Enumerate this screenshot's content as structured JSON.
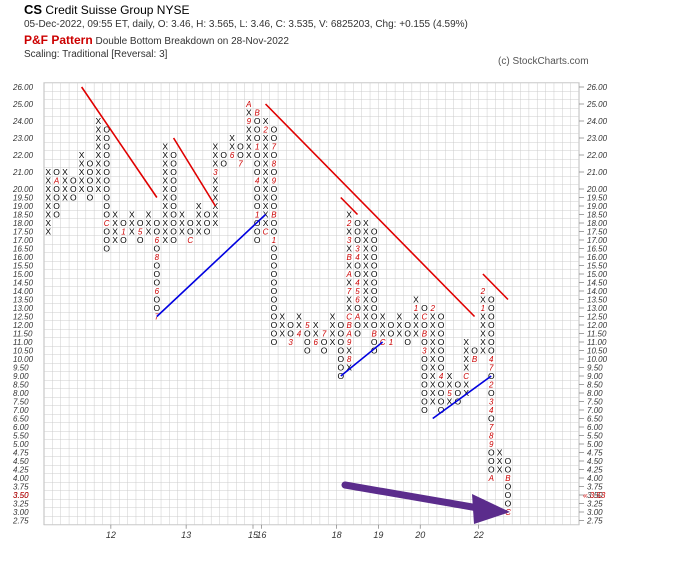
{
  "header": {
    "symbol": "CS",
    "name": "Credit Suisse Group  NYSE",
    "quote": "05-Dec-2022, 09:55 ET, daily, O: 3.46, H: 3.565, L: 3.46, C: 3.535, V: 6825203, Chg: +0.155 (4.59%)",
    "pattern_label": "P&F Pattern",
    "pattern_text": "Double Bottom Breakdown on 28-Nov-2022",
    "scaling": "Scaling: Traditional [Reversal: 3]",
    "credit": "(c) StockCharts.com"
  },
  "chart_data": {
    "type": "point-and-figure",
    "box_prices": [
      26,
      25.5,
      25,
      24.5,
      24,
      23.5,
      23,
      22.5,
      22,
      21.5,
      21,
      20.5,
      20,
      19.5,
      19,
      18.5,
      18,
      17.5,
      17,
      16.5,
      16,
      15.5,
      15,
      14.5,
      14,
      13.5,
      13,
      12.5,
      12,
      11.5,
      11,
      10.5,
      10,
      9.5,
      9,
      8.5,
      8,
      7.5,
      7,
      6.5,
      6,
      5.5,
      5,
      4.75,
      4.5,
      4.25,
      4,
      3.75,
      3.5,
      3.25,
      3,
      2.75
    ],
    "y_labels": [
      "26.00",
      "25.00",
      "24.00",
      "23.00",
      "22.00",
      "21.00",
      "20.00",
      "19.50",
      "19.00",
      "18.50",
      "18.00",
      "17.50",
      "17.00",
      "16.50",
      "16.00",
      "15.50",
      "15.00",
      "14.50",
      "14.00",
      "13.50",
      "13.00",
      "12.50",
      "12.00",
      "11.50",
      "11.00",
      "10.50",
      "10.00",
      "9.50",
      "9.00",
      "8.50",
      "8.00",
      "7.50",
      "7.00",
      "6.50",
      "6.00",
      "5.50",
      "5.00",
      "4.75",
      "4.50",
      "4.25",
      "4.00",
      "3.75",
      "3.50",
      "3.25",
      "3.00",
      "2.75"
    ],
    "last_price_label": "3.53",
    "year_labels": [
      {
        "label": "12",
        "col": 8
      },
      {
        "label": "13",
        "col": 17
      },
      {
        "label": "15",
        "col": 25
      },
      {
        "label": "16",
        "col": 26
      },
      {
        "label": "18",
        "col": 35
      },
      {
        "label": "19",
        "col": 40
      },
      {
        "label": "20",
        "col": 45
      },
      {
        "label": "22",
        "col": 52
      }
    ],
    "columns": [
      {
        "col": 0,
        "type": "X",
        "from": 17.5,
        "to": 21
      },
      {
        "col": 1,
        "type": "O",
        "from": 21,
        "to": 18.5
      },
      {
        "col": 2,
        "type": "X",
        "from": 19.5,
        "to": 21
      },
      {
        "col": 3,
        "type": "O",
        "from": 20.5,
        "to": 19.5
      },
      {
        "col": 4,
        "type": "X",
        "from": 20,
        "to": 22
      },
      {
        "col": 5,
        "type": "O",
        "from": 21.5,
        "to": 19.5
      },
      {
        "col": 6,
        "type": "X",
        "from": 20,
        "to": 24
      },
      {
        "col": 7,
        "type": "O",
        "from": 23.5,
        "to": 16.5
      },
      {
        "col": 8,
        "type": "X",
        "from": 17,
        "to": 18.5
      },
      {
        "col": 9,
        "type": "O",
        "from": 18,
        "to": 17
      },
      {
        "col": 10,
        "type": "X",
        "from": 17.5,
        "to": 18.5
      },
      {
        "col": 11,
        "type": "O",
        "from": 18,
        "to": 17
      },
      {
        "col": 12,
        "type": "X",
        "from": 17.5,
        "to": 18.5
      },
      {
        "col": 13,
        "type": "O",
        "from": 18,
        "to": 12.5
      },
      {
        "col": 14,
        "type": "X",
        "from": 17,
        "to": 22.5
      },
      {
        "col": 15,
        "type": "O",
        "from": 22,
        "to": 17
      },
      {
        "col": 16,
        "type": "X",
        "from": 17.5,
        "to": 18.5
      },
      {
        "col": 17,
        "type": "O",
        "from": 18,
        "to": 17
      },
      {
        "col": 18,
        "type": "X",
        "from": 17.5,
        "to": 19
      },
      {
        "col": 19,
        "type": "O",
        "from": 18.5,
        "to": 17.5
      },
      {
        "col": 20,
        "type": "X",
        "from": 18,
        "to": 22.5
      },
      {
        "col": 21,
        "type": "O",
        "from": 22,
        "to": 21.5
      },
      {
        "col": 22,
        "type": "X",
        "from": 22,
        "to": 23
      },
      {
        "col": 23,
        "type": "O",
        "from": 22.5,
        "to": 21.5
      },
      {
        "col": 24,
        "type": "X",
        "from": 22,
        "to": 25
      },
      {
        "col": 25,
        "type": "O",
        "from": 24.5,
        "to": 17
      },
      {
        "col": 26,
        "type": "X",
        "from": 17.5,
        "to": 24
      },
      {
        "col": 27,
        "type": "O",
        "from": 23.5,
        "to": 11
      },
      {
        "col": 28,
        "type": "X",
        "from": 11.5,
        "to": 12.5
      },
      {
        "col": 29,
        "type": "O",
        "from": 12,
        "to": 11
      },
      {
        "col": 30,
        "type": "X",
        "from": 11.5,
        "to": 12.5
      },
      {
        "col": 31,
        "type": "O",
        "from": 12,
        "to": 10.5
      },
      {
        "col": 32,
        "type": "X",
        "from": 11,
        "to": 12
      },
      {
        "col": 33,
        "type": "O",
        "from": 11.5,
        "to": 10.5
      },
      {
        "col": 34,
        "type": "X",
        "from": 11,
        "to": 12.5
      },
      {
        "col": 35,
        "type": "O",
        "from": 12,
        "to": 9
      },
      {
        "col": 36,
        "type": "X",
        "from": 9.5,
        "to": 18.5
      },
      {
        "col": 37,
        "type": "O",
        "from": 18,
        "to": 11.5
      },
      {
        "col": 38,
        "type": "X",
        "from": 12,
        "to": 18
      },
      {
        "col": 39,
        "type": "O",
        "from": 17.5,
        "to": 10.5
      },
      {
        "col": 40,
        "type": "X",
        "from": 11,
        "to": 12.5
      },
      {
        "col": 41,
        "type": "O",
        "from": 12,
        "to": 11
      },
      {
        "col": 42,
        "type": "X",
        "from": 11.5,
        "to": 12.5
      },
      {
        "col": 43,
        "type": "O",
        "from": 12,
        "to": 11
      },
      {
        "col": 44,
        "type": "X",
        "from": 11.5,
        "to": 13.5
      },
      {
        "col": 45,
        "type": "O",
        "from": 13,
        "to": 7
      },
      {
        "col": 46,
        "type": "X",
        "from": 7.5,
        "to": 13
      },
      {
        "col": 47,
        "type": "O",
        "from": 12.5,
        "to": 7
      },
      {
        "col": 48,
        "type": "X",
        "from": 7.5,
        "to": 9
      },
      {
        "col": 49,
        "type": "O",
        "from": 8.5,
        "to": 7.5
      },
      {
        "col": 50,
        "type": "X",
        "from": 8,
        "to": 11
      },
      {
        "col": 51,
        "type": "O",
        "from": 10.5,
        "to": 10
      },
      {
        "col": 52,
        "type": "X",
        "from": 10.5,
        "to": 14
      },
      {
        "col": 53,
        "type": "O",
        "from": 13.5,
        "to": 4
      },
      {
        "col": 54,
        "type": "X",
        "from": 4.25,
        "to": 4.75
      },
      {
        "col": 55,
        "type": "O",
        "from": 4.5,
        "to": 3
      }
    ],
    "month_marks": [
      {
        "col": 1,
        "price": 20.5,
        "label": "A"
      },
      {
        "col": 5,
        "price": 23,
        "label": "B"
      },
      {
        "col": 7,
        "price": 18,
        "label": "C"
      },
      {
        "col": 9,
        "price": 17.5,
        "label": "1"
      },
      {
        "col": 11,
        "price": 17.5,
        "label": "5"
      },
      {
        "col": 13,
        "price": 22,
        "label": "3"
      },
      {
        "col": 13,
        "price": 21,
        "label": "4"
      },
      {
        "col": 13,
        "price": 17,
        "label": "6"
      },
      {
        "col": 13,
        "price": 16,
        "label": "8"
      },
      {
        "col": 13,
        "price": 14,
        "label": "6"
      },
      {
        "col": 13,
        "price": 12.5,
        "label": "7"
      },
      {
        "col": 14,
        "price": 15,
        "label": "9"
      },
      {
        "col": 14,
        "price": 13,
        "label": "8"
      },
      {
        "col": 15,
        "price": 16.5,
        "label": "A"
      },
      {
        "col": 16,
        "price": 16.5,
        "label": "B"
      },
      {
        "col": 17,
        "price": 17,
        "label": "C"
      },
      {
        "col": 19,
        "price": 20.5,
        "label": "1"
      },
      {
        "col": 20,
        "price": 21,
        "label": "3"
      },
      {
        "col": 21,
        "price": 20.5,
        "label": "5"
      },
      {
        "col": 22,
        "price": 22,
        "label": "6"
      },
      {
        "col": 23,
        "price": 21.5,
        "label": "7"
      },
      {
        "col": 24,
        "price": 25,
        "label": "A"
      },
      {
        "col": 24,
        "price": 24,
        "label": "9"
      },
      {
        "col": 25,
        "price": 24.5,
        "label": "B"
      },
      {
        "col": 25,
        "price": 22.5,
        "label": "1"
      },
      {
        "col": 25,
        "price": 20.5,
        "label": "4"
      },
      {
        "col": 25,
        "price": 18.5,
        "label": "1"
      },
      {
        "col": 26,
        "price": 24.5,
        "label": "6"
      },
      {
        "col": 26,
        "price": 23.5,
        "label": "2"
      },
      {
        "col": 27,
        "price": 22.5,
        "label": "7"
      },
      {
        "col": 27,
        "price": 20.5,
        "label": "9"
      },
      {
        "col": 27,
        "price": 18.5,
        "label": "B"
      },
      {
        "col": 27,
        "price": 17,
        "label": "1"
      },
      {
        "col": 26,
        "price": 17.5,
        "label": "C"
      },
      {
        "col": 27,
        "price": 21.5,
        "label": "8"
      },
      {
        "col": 28,
        "price": 22,
        "label": "6"
      },
      {
        "col": 28,
        "price": 21,
        "label": "9"
      },
      {
        "col": 30,
        "price": 11.5,
        "label": "4"
      },
      {
        "col": 31,
        "price": 12,
        "label": "5"
      },
      {
        "col": 32,
        "price": 11,
        "label": "6"
      },
      {
        "col": 33,
        "price": 11.5,
        "label": "7"
      },
      {
        "col": 28,
        "price": 13,
        "label": "2"
      },
      {
        "col": 29,
        "price": 11,
        "label": "3"
      },
      {
        "col": 36,
        "price": 18,
        "label": "2"
      },
      {
        "col": 36,
        "price": 17,
        "label": "3"
      },
      {
        "col": 36,
        "price": 16,
        "label": "B"
      },
      {
        "col": 36,
        "price": 15,
        "label": "A"
      },
      {
        "col": 36,
        "price": 14,
        "label": "7"
      },
      {
        "col": 36,
        "price": 12.5,
        "label": "C"
      },
      {
        "col": 36,
        "price": 12,
        "label": "B"
      },
      {
        "col": 36,
        "price": 11.5,
        "label": "A"
      },
      {
        "col": 36,
        "price": 11,
        "label": "9"
      },
      {
        "col": 36,
        "price": 10,
        "label": "8"
      },
      {
        "col": 37,
        "price": 14.5,
        "label": "4"
      },
      {
        "col": 37,
        "price": 14,
        "label": "5"
      },
      {
        "col": 37,
        "price": 13.5,
        "label": "6"
      },
      {
        "col": 37,
        "price": 12.5,
        "label": "A"
      },
      {
        "col": 37,
        "price": 16,
        "label": "4"
      },
      {
        "col": 37,
        "price": 16.5,
        "label": "3"
      },
      {
        "col": 39,
        "price": 11.5,
        "label": "B"
      },
      {
        "col": 40,
        "price": 11,
        "label": "C"
      },
      {
        "col": 41,
        "price": 11,
        "label": "1"
      },
      {
        "col": 39,
        "price": 10,
        "label": "1"
      },
      {
        "col": 44,
        "price": 13,
        "label": "1"
      },
      {
        "col": 45,
        "price": 12.5,
        "label": "C"
      },
      {
        "col": 45,
        "price": 11.5,
        "label": "B"
      },
      {
        "col": 45,
        "price": 10.5,
        "label": "3"
      },
      {
        "col": 46,
        "price": 13,
        "label": "2"
      },
      {
        "col": 47,
        "price": 9,
        "label": "4"
      },
      {
        "col": 48,
        "price": 8,
        "label": "5"
      },
      {
        "col": 48,
        "price": 10.5,
        "label": "8"
      },
      {
        "col": 49,
        "price": 10,
        "label": "6"
      },
      {
        "col": 50,
        "price": 9,
        "label": "C"
      },
      {
        "col": 51,
        "price": 10,
        "label": "B"
      },
      {
        "col": 52,
        "price": 14,
        "label": "2"
      },
      {
        "col": 53,
        "price": 14,
        "label": "3"
      },
      {
        "col": 52,
        "price": 13,
        "label": "1"
      },
      {
        "col": 53,
        "price": 10,
        "label": "4"
      },
      {
        "col": 53,
        "price": 9.5,
        "label": "7"
      },
      {
        "col": 53,
        "price": 8.5,
        "label": "2"
      },
      {
        "col": 53,
        "price": 7.5,
        "label": "3"
      },
      {
        "col": 53,
        "price": 7,
        "label": "4"
      },
      {
        "col": 53,
        "price": 6,
        "label": "7"
      },
      {
        "col": 53,
        "price": 5.5,
        "label": "8"
      },
      {
        "col": 53,
        "price": 5,
        "label": "9"
      },
      {
        "col": 53,
        "price": 4,
        "label": "A"
      },
      {
        "col": 55,
        "price": 4,
        "label": "B"
      },
      {
        "col": 55,
        "price": 3,
        "label": "C"
      }
    ],
    "trendlines": [
      {
        "color": "#e00000",
        "from": {
          "col": 4,
          "price": 26
        },
        "to": {
          "col": 13,
          "price": 19.5
        }
      },
      {
        "color": "#e00000",
        "from": {
          "col": 15,
          "price": 23
        },
        "to": {
          "col": 20,
          "price": 19
        }
      },
      {
        "color": "#e00000",
        "from": {
          "col": 26,
          "price": 25
        },
        "to": {
          "col": 51,
          "price": 12.5
        }
      },
      {
        "color": "#e00000",
        "from": {
          "col": 52,
          "price": 15
        },
        "to": {
          "col": 55,
          "price": 13.5
        }
      },
      {
        "color": "#e00000",
        "from": {
          "col": 35,
          "price": 19.5
        },
        "to": {
          "col": 37,
          "price": 18.5
        }
      },
      {
        "color": "#0000e0",
        "from": {
          "col": 13,
          "price": 12.5
        },
        "to": {
          "col": 26,
          "price": 18.5
        }
      },
      {
        "color": "#0000e0",
        "from": {
          "col": 35,
          "price": 9
        },
        "to": {
          "col": 40,
          "price": 11
        }
      },
      {
        "color": "#0000e0",
        "from": {
          "col": 46,
          "price": 6.5
        },
        "to": {
          "col": 53,
          "price": 9
        }
      }
    ],
    "annotation_arrow": {
      "color": "#5b2c8c"
    },
    "colors": {
      "X": "#000000",
      "O": "#000000",
      "month": "#cc0000",
      "grid": "#cccccc",
      "last_price": "#cc0000"
    }
  }
}
